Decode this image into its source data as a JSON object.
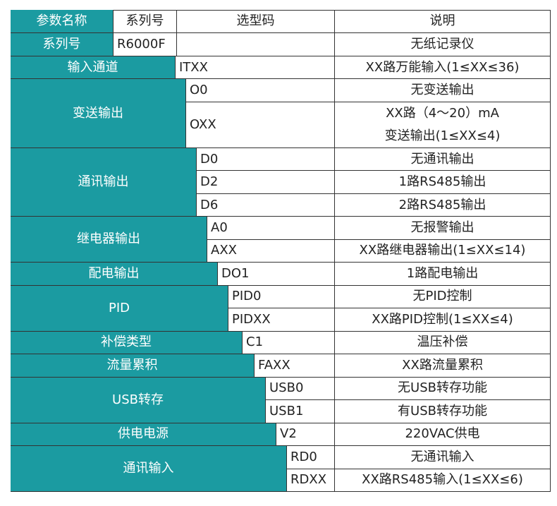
{
  "header": {
    "param": "参数名称",
    "series": "系列号",
    "code": "选型码",
    "description": "说明"
  },
  "series_row": {
    "param": "系列号",
    "code": "R6000F",
    "description": "无纸记录仪"
  },
  "groups": [
    {
      "param": "输入通道",
      "codes": [
        {
          "code": "ITXX",
          "description": "XX路万能输入(1≤XX≤36)"
        }
      ]
    },
    {
      "param": "变送输出",
      "codes": [
        {
          "code": "O0",
          "description": "无变送输出"
        },
        {
          "code": "OXX",
          "description": "XX路（4～20）mA\n变送输出(1≤XX≤4)"
        }
      ]
    },
    {
      "param": "通讯输出",
      "codes": [
        {
          "code": "D0",
          "description": "无通讯输出"
        },
        {
          "code": "D2",
          "description": "1路RS485输出"
        },
        {
          "code": "D6",
          "description": "2路RS485输出"
        }
      ]
    },
    {
      "param": "继电器输出",
      "codes": [
        {
          "code": "A0",
          "description": "无报警输出"
        },
        {
          "code": "AXX",
          "description": "XX路继电器输出(1≤XX≤14)"
        }
      ]
    },
    {
      "param": "配电输出",
      "codes": [
        {
          "code": "DO1",
          "description": "1路配电输出"
        }
      ]
    },
    {
      "param": "PID",
      "codes": [
        {
          "code": "PID0",
          "description": "无PID控制"
        },
        {
          "code": "PIDXX",
          "description": "XX路PID控制(1≤XX≤4)"
        }
      ]
    },
    {
      "param": "补偿类型",
      "codes": [
        {
          "code": "C1",
          "description": "温压补偿"
        }
      ]
    },
    {
      "param": "流量累积",
      "codes": [
        {
          "code": "FAXX",
          "description": "XX路流量累积"
        }
      ]
    },
    {
      "param": "USB转存",
      "codes": [
        {
          "code": "USB0",
          "description": "无USB转存功能"
        },
        {
          "code": "USB1",
          "description": "有USB转存功能"
        }
      ]
    },
    {
      "param": "供电电源",
      "codes": [
        {
          "code": "V2",
          "description": "220VAC供电"
        }
      ]
    },
    {
      "param": "通讯输入",
      "codes": [
        {
          "code": "RD0",
          "description": "无通讯输入"
        },
        {
          "code": "RDXX",
          "description": "XX路RS485输入(1≤XX≤6)"
        }
      ]
    }
  ]
}
